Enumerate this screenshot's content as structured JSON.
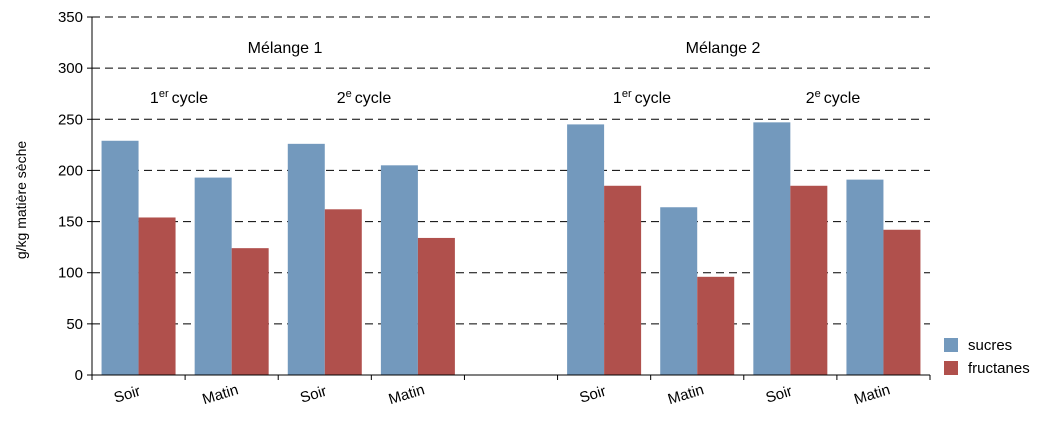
{
  "chart_data": {
    "type": "bar",
    "categories": [
      "Soir",
      "Matin",
      "Soir",
      "Matin",
      "",
      "Soir",
      "Matin",
      "Soir",
      "Matin"
    ],
    "series": [
      {
        "name": "sucres",
        "color": "#7399bd",
        "values": [
          229,
          193,
          226,
          205,
          null,
          245,
          164,
          247,
          191
        ]
      },
      {
        "name": "fructanes",
        "color": "#b0504c",
        "values": [
          154,
          124,
          162,
          134,
          null,
          185,
          96,
          185,
          142
        ]
      }
    ],
    "ylabel": "g/kg matière sèche",
    "ylim": [
      0,
      350
    ],
    "yticks": [
      0,
      50,
      100,
      150,
      200,
      250,
      300,
      350
    ],
    "grid": true,
    "legend_position": "bottom-right",
    "group_labels": [
      "Mélange 1",
      "Mélange 2"
    ],
    "cycle_labels": [
      {
        "num": "1",
        "sup": "er",
        "word": "cycle"
      },
      {
        "num": "2",
        "sup": "e",
        "word": "cycle"
      },
      {
        "num": "1",
        "sup": "er",
        "word": "cycle"
      },
      {
        "num": "2",
        "sup": "e",
        "word": "cycle"
      }
    ]
  }
}
